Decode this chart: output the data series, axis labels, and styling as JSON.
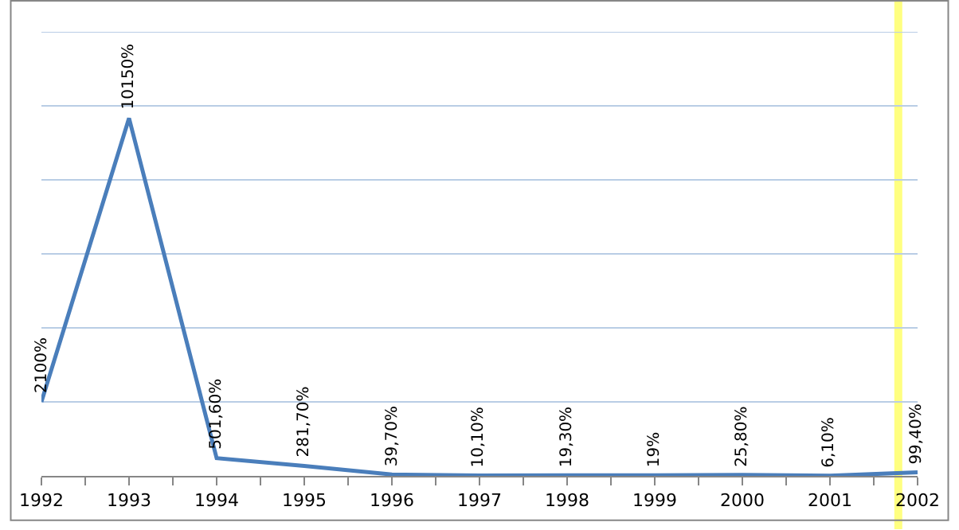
{
  "chart_data": {
    "type": "line",
    "x": [
      1992,
      1993,
      1994,
      1995,
      1996,
      1997,
      1998,
      1999,
      2000,
      2001,
      2002
    ],
    "series": [
      {
        "color": "#4a7ebb",
        "values": [
          2100,
          10150,
          501.6,
          281.7,
          39.7,
          10.1,
          19.3,
          19,
          25.8,
          6.1,
          99.4
        ],
        "value_labels": [
          "2100%",
          "10150%",
          "501,60%",
          "281,70%",
          "39,70%",
          "10,10%",
          "19,30%",
          "19%",
          "25,80%",
          "6,10%",
          "99,40%"
        ]
      }
    ],
    "xlim": [
      1992,
      2002
    ],
    "xticks": [
      1992,
      1993,
      1994,
      1995,
      1996,
      1997,
      1998,
      1999,
      2000,
      2001,
      2002
    ],
    "ylim": [
      0,
      12600
    ],
    "yticks": [
      {
        "value": 2100,
        "label": null
      },
      {
        "value": 4200,
        "label": null
      },
      {
        "value": 6300,
        "label": null
      },
      {
        "value": 8400,
        "label": null
      },
      {
        "value": 10500,
        "label": null
      },
      {
        "value": 12600,
        "label": null
      }
    ],
    "tick_labels": "x",
    "grid": "y",
    "marker": "none",
    "line_style": "solid",
    "ref_lines": [
      {
        "axis": "x",
        "value": 2001.78,
        "color": "#ffff80"
      }
    ]
  }
}
